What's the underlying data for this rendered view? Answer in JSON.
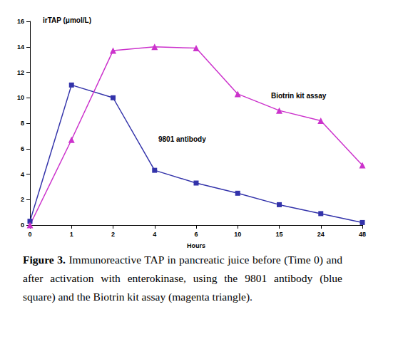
{
  "chart_data": {
    "type": "line",
    "x_label": "Hours",
    "y_label": "irTAP (μmol/L)",
    "caption": "Figure 3. Immunoreactive TAP in pancreatic juice before (Time 0) and after activation with enterokinase, using the 9801 antibody (blue square) and the Biotrin kit assay (magenta triangle).",
    "categories": [
      "0",
      "1",
      "2",
      "4",
      "6",
      "10",
      "15",
      "24",
      "48"
    ],
    "series": [
      {
        "name": "9801 antibody",
        "color": "#3333aa",
        "marker": "square",
        "values": [
          0.3,
          11.0,
          10.0,
          4.3,
          3.3,
          2.5,
          1.6,
          0.9,
          0.2
        ]
      },
      {
        "name": "Biotrin kit assay",
        "color": "#cc33cc",
        "marker": "triangle",
        "values": [
          0.0,
          6.7,
          13.7,
          14.0,
          13.9,
          10.3,
          9.0,
          8.2,
          4.7
        ]
      }
    ],
    "ylim": [
      0,
      16
    ],
    "yticks": [
      0,
      2,
      4,
      6,
      8,
      10,
      12,
      14,
      16
    ],
    "grid": false
  }
}
